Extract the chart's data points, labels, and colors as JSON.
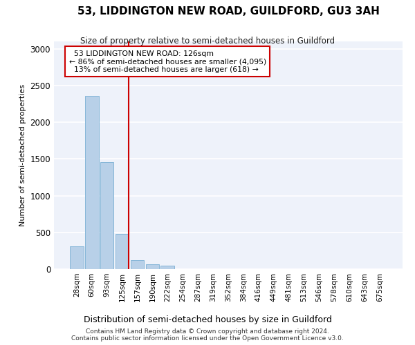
{
  "title": "53, LIDDINGTON NEW ROAD, GUILDFORD, GU3 3AH",
  "subtitle": "Size of property relative to semi-detached houses in Guildford",
  "xlabel": "Distribution of semi-detached houses by size in Guildford",
  "ylabel": "Number of semi-detached properties",
  "footnote": "Contains HM Land Registry data © Crown copyright and database right 2024.\nContains public sector information licensed under the Open Government Licence v3.0.",
  "bar_labels": [
    "28sqm",
    "60sqm",
    "93sqm",
    "125sqm",
    "157sqm",
    "190sqm",
    "222sqm",
    "254sqm",
    "287sqm",
    "319sqm",
    "352sqm",
    "384sqm",
    "416sqm",
    "449sqm",
    "481sqm",
    "513sqm",
    "546sqm",
    "578sqm",
    "610sqm",
    "643sqm",
    "675sqm"
  ],
  "bar_values": [
    310,
    2360,
    1460,
    475,
    125,
    65,
    45,
    0,
    0,
    0,
    0,
    0,
    0,
    0,
    0,
    0,
    0,
    0,
    0,
    0,
    0
  ],
  "bar_color": "#b8d0e8",
  "bar_edge_color": "#7aafd4",
  "property_label": "53 LIDDINGTON NEW ROAD: 126sqm",
  "pct_smaller": "86% of semi-detached houses are smaller (4,095)",
  "pct_larger": "13% of semi-detached houses are larger (618)",
  "ylim": [
    0,
    3100
  ],
  "yticks": [
    0,
    500,
    1000,
    1500,
    2000,
    2500,
    3000
  ],
  "background_color": "#eef2fa",
  "grid_color": "#ffffff",
  "vline_color": "#cc0000",
  "vline_x": 3.42,
  "fig_bg": "#ffffff"
}
